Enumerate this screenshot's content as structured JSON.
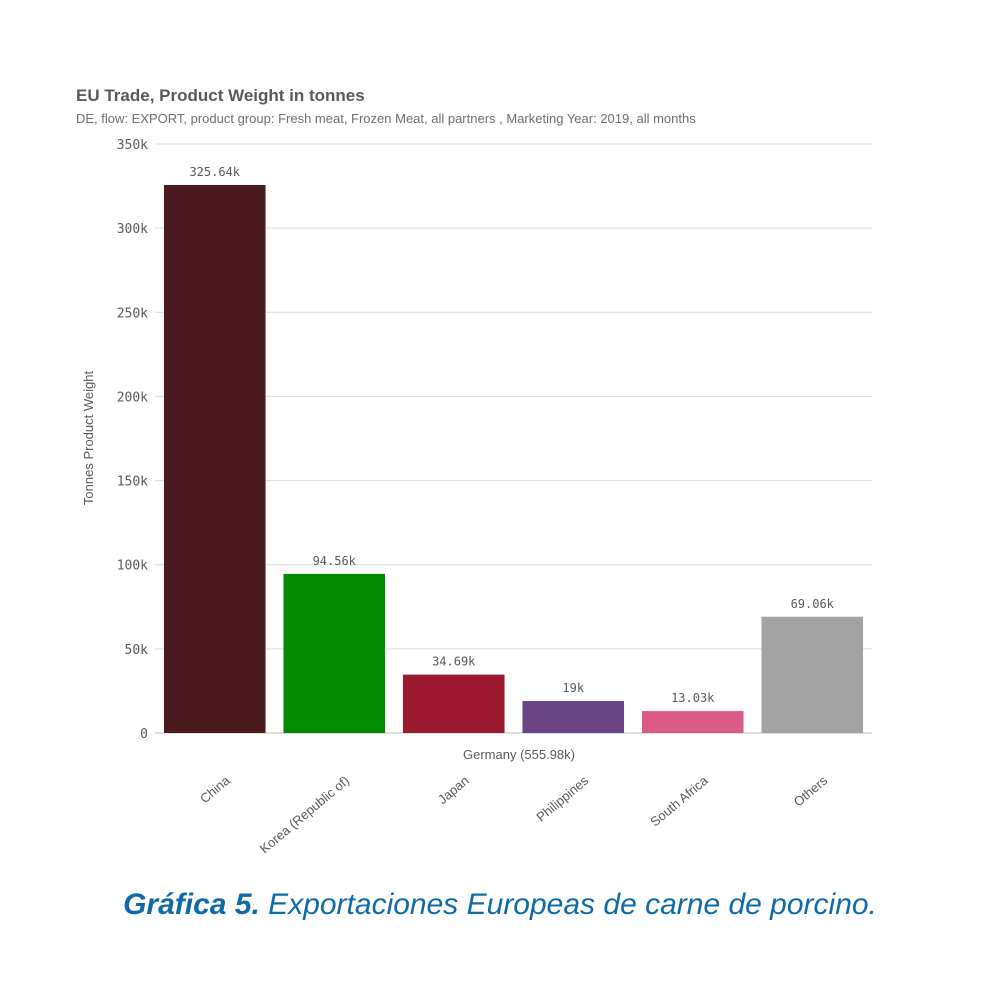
{
  "chart_data": {
    "type": "bar",
    "title": "EU Trade, Product Weight in tonnes",
    "subtitle": "DE, flow: EXPORT, product group: Fresh meat, Frozen Meat, all partners , Marketing Year: 2019, all months",
    "ylabel": "Tonnes Product Weight",
    "xlabel": "Germany (555.98k)",
    "ylim": [
      0,
      350000
    ],
    "yticks": [
      0,
      50000,
      100000,
      150000,
      200000,
      250000,
      300000,
      350000
    ],
    "ytick_labels": [
      "0",
      "50k",
      "100k",
      "150k",
      "200k",
      "250k",
      "300k",
      "350k"
    ],
    "grid": true,
    "categories": [
      "China",
      "Korea (Republic of)",
      "Japan",
      "Philippines",
      "South Africa",
      "Others"
    ],
    "values": [
      325640,
      94560,
      34690,
      19000,
      13030,
      69060
    ],
    "value_labels": [
      "325.64k",
      "94.56k",
      "34.69k",
      "19k",
      "13.03k",
      "69.06k"
    ],
    "colors": [
      "#4b1a1f",
      "#028b02",
      "#9b1a2e",
      "#6a4585",
      "#dc5a86",
      "#a3a3a3"
    ]
  },
  "caption": {
    "label": "Gráfica 5.",
    "text": " Exportaciones Europeas de carne de porcino."
  }
}
